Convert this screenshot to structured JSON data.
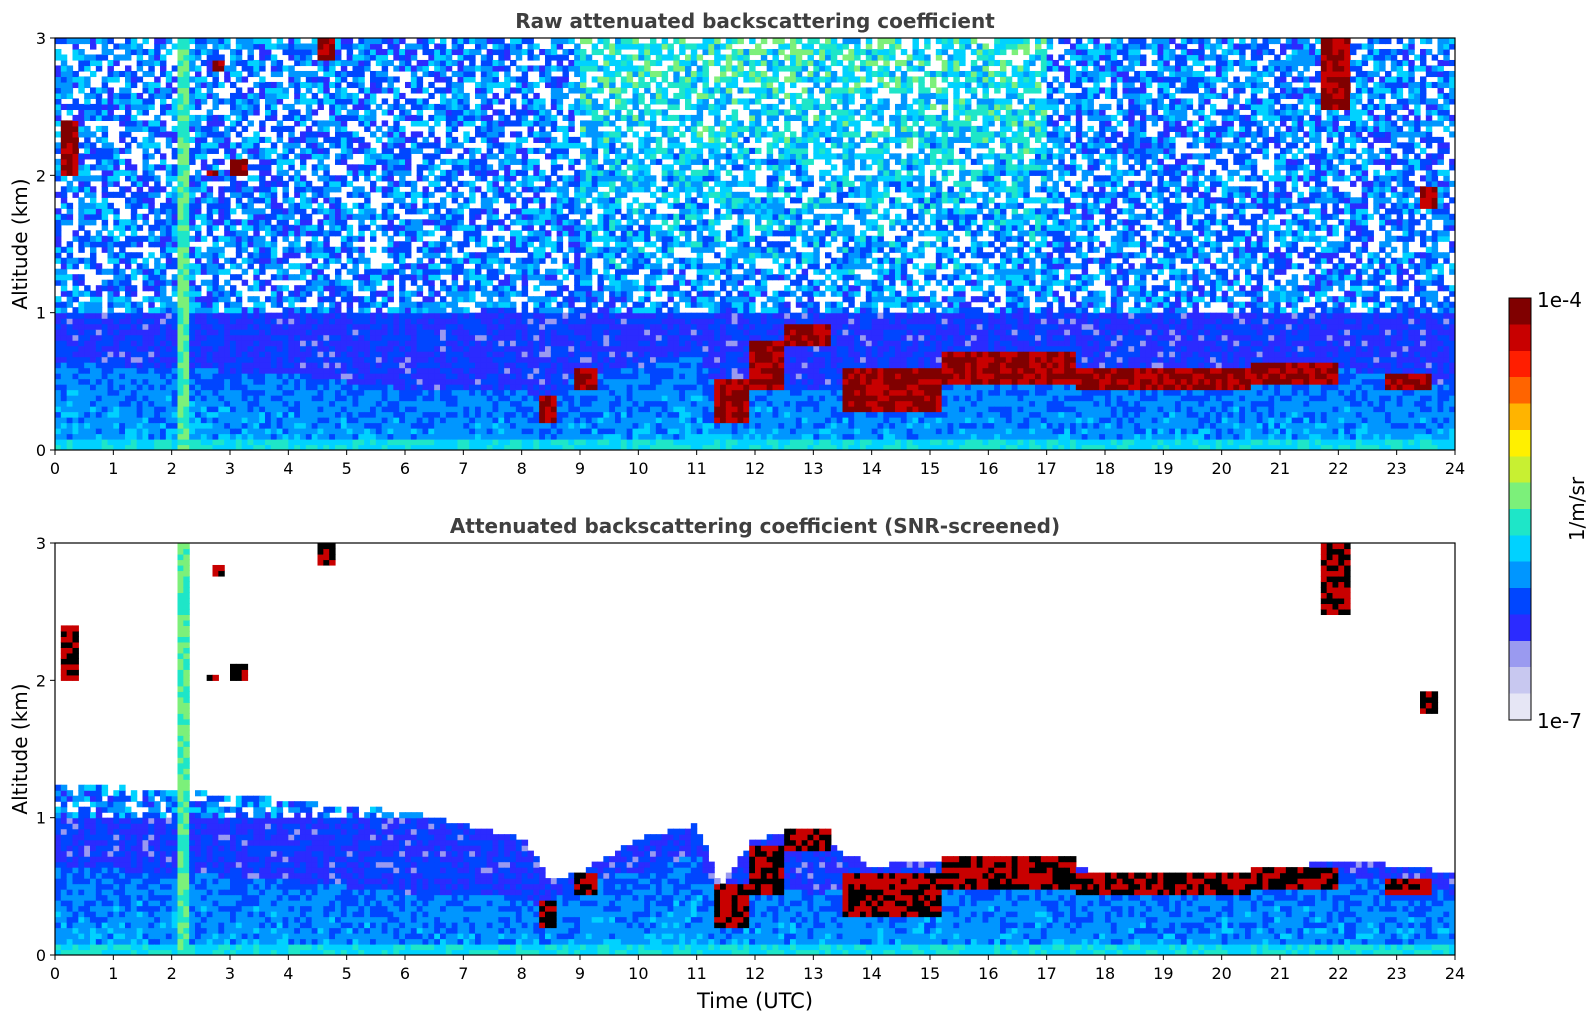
{
  "chart_data": [
    {
      "type": "heatmap",
      "title": "Raw attenuated backscattering coefficient",
      "xlabel": "",
      "ylabel": "Altitude (km)",
      "xlim": [
        0,
        24
      ],
      "ylim": [
        0,
        3
      ],
      "xticks": [
        "0",
        "1",
        "2",
        "3",
        "4",
        "5",
        "6",
        "7",
        "8",
        "9",
        "10",
        "11",
        "12",
        "13",
        "14",
        "15",
        "16",
        "17",
        "18",
        "19",
        "20",
        "21",
        "22",
        "23",
        "24"
      ],
      "yticks": [
        "0",
        "1",
        "2",
        "3"
      ],
      "screened": false,
      "boundary_layer_top_km": [
        [
          0,
          0.65
        ],
        [
          4,
          0.55
        ],
        [
          6,
          0.45
        ],
        [
          8,
          0.45
        ],
        [
          8.3,
          0.35
        ],
        [
          9,
          0.55
        ],
        [
          10,
          0.6
        ],
        [
          11,
          0.75
        ],
        [
          11.4,
          0.35
        ],
        [
          12,
          0.55
        ],
        [
          13,
          0.45
        ],
        [
          14,
          0.5
        ],
        [
          16,
          0.6
        ],
        [
          18,
          0.5
        ],
        [
          20,
          0.5
        ],
        [
          22,
          0.6
        ],
        [
          24,
          0.45
        ]
      ],
      "cloud_layers": [
        {
          "t0": 8.3,
          "t1": 8.6,
          "z0": 0.22,
          "z1": 0.38
        },
        {
          "t0": 8.9,
          "t1": 9.3,
          "z0": 0.45,
          "z1": 0.6
        },
        {
          "t0": 11.3,
          "t1": 11.9,
          "z0": 0.22,
          "z1": 0.5
        },
        {
          "t0": 11.9,
          "t1": 12.5,
          "z0": 0.45,
          "z1": 0.78
        },
        {
          "t0": 12.5,
          "t1": 13.3,
          "z0": 0.75,
          "z1": 0.9
        },
        {
          "t0": 13.5,
          "t1": 15.2,
          "z0": 0.3,
          "z1": 0.6
        },
        {
          "t0": 15.2,
          "t1": 17.5,
          "z0": 0.5,
          "z1": 0.7
        },
        {
          "t0": 17.5,
          "t1": 20.5,
          "z0": 0.45,
          "z1": 0.6
        },
        {
          "t0": 20.5,
          "t1": 22.0,
          "z0": 0.5,
          "z1": 0.65
        },
        {
          "t0": 22.8,
          "t1": 23.6,
          "z0": 0.45,
          "z1": 0.55
        }
      ],
      "high_clouds": [
        {
          "t0": 0.15,
          "t1": 0.35,
          "z0": 2.0,
          "z1": 2.4
        },
        {
          "t0": 2.6,
          "t1": 2.75,
          "z0": 2.0,
          "z1": 2.05
        },
        {
          "t0": 3.0,
          "t1": 3.3,
          "z0": 2.0,
          "z1": 2.1
        },
        {
          "t0": 2.7,
          "t1": 2.9,
          "z0": 2.75,
          "z1": 2.85
        },
        {
          "t0": 4.5,
          "t1": 4.8,
          "z0": 2.85,
          "z1": 3.0
        },
        {
          "t0": 21.7,
          "t1": 22.2,
          "z0": 2.5,
          "z1": 3.0
        },
        {
          "t0": 23.4,
          "t1": 23.7,
          "z0": 1.75,
          "z1": 1.9
        }
      ],
      "vertical_streak_time": 2.2
    },
    {
      "type": "heatmap",
      "title": "Attenuated backscattering coefficient (SNR-screened)",
      "xlabel": "Time (UTC)",
      "ylabel": "Altitude (km)",
      "xlim": [
        0,
        24
      ],
      "ylim": [
        0,
        3
      ],
      "xticks": [
        "0",
        "1",
        "2",
        "3",
        "4",
        "5",
        "6",
        "7",
        "8",
        "9",
        "10",
        "11",
        "12",
        "13",
        "14",
        "15",
        "16",
        "17",
        "18",
        "19",
        "20",
        "21",
        "22",
        "23",
        "24"
      ],
      "yticks": [
        "0",
        "1",
        "2",
        "3"
      ],
      "screened": true,
      "screen_top_km": [
        [
          0,
          1.25
        ],
        [
          2,
          1.2
        ],
        [
          3.5,
          1.15
        ],
        [
          4.5,
          1.1
        ],
        [
          6,
          1.05
        ],
        [
          7,
          0.95
        ],
        [
          8,
          0.85
        ],
        [
          8.5,
          0.55
        ],
        [
          9,
          0.6
        ],
        [
          10,
          0.85
        ],
        [
          11,
          0.95
        ],
        [
          11.4,
          0.5
        ],
        [
          12,
          0.85
        ],
        [
          13,
          0.9
        ],
        [
          13.5,
          0.75
        ],
        [
          14,
          0.65
        ],
        [
          16,
          0.72
        ],
        [
          18,
          0.6
        ],
        [
          20,
          0.55
        ],
        [
          22,
          0.7
        ],
        [
          24,
          0.6
        ]
      ]
    }
  ],
  "colorbar": {
    "label": "1/m/sr",
    "max_label": "1e-4",
    "min_label": "1e-7",
    "colors": [
      "#e6e6f5",
      "#c8c8f0",
      "#9a9af0",
      "#2b2bff",
      "#0046ff",
      "#0096ff",
      "#00d2ff",
      "#1ee6c8",
      "#7cf07a",
      "#c8f032",
      "#fff000",
      "#ffb400",
      "#ff6400",
      "#ff1e00",
      "#c80000",
      "#800000"
    ]
  }
}
